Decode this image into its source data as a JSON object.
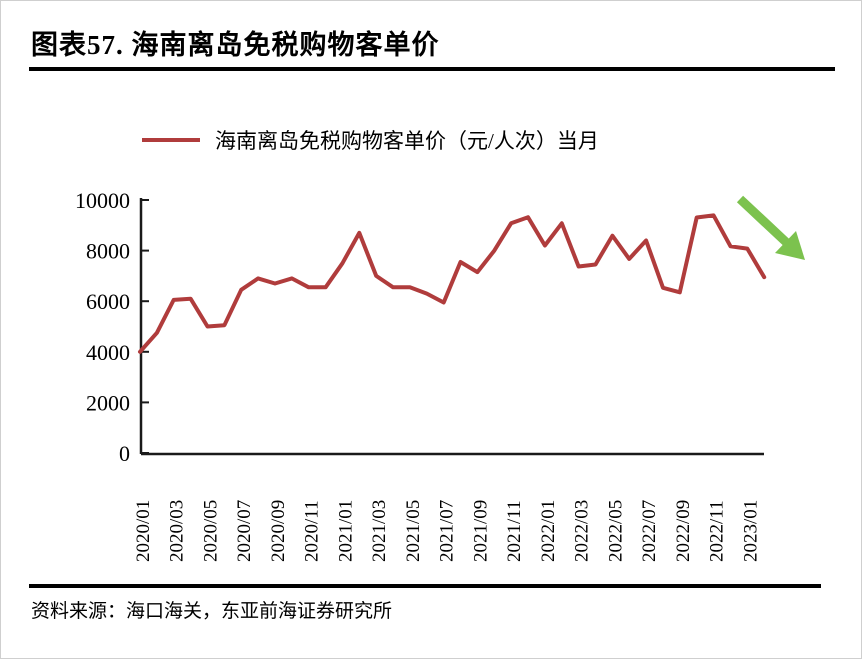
{
  "header": {
    "title": "图表57.  海南离岛免税购物客单价"
  },
  "legend": {
    "label": "海南离岛免税购物客单价（元/人次）当月"
  },
  "source": {
    "text": "资料来源：海口海关，东亚前海证券研究所"
  },
  "colors": {
    "line": "#B03C3C",
    "arrow": "#7CC24E",
    "axis": "#1a1a1a",
    "text": "#000000"
  },
  "chart_data": {
    "type": "line",
    "title": "海南离岛免税购物客单价",
    "series": [
      {
        "name": "海南离岛免税购物客单价（元/人次）当月",
        "values": [
          4000,
          4750,
          6050,
          6100,
          5000,
          5050,
          6450,
          6900,
          6700,
          6900,
          6550,
          6550,
          7500,
          8700,
          7000,
          6550,
          6550,
          6300,
          5950,
          7550,
          7150,
          8000,
          9080,
          9320,
          8200,
          9080,
          7370,
          7450,
          8590,
          7670,
          8400,
          6530,
          6350,
          9310,
          9390,
          8170,
          8080,
          6950
        ]
      }
    ],
    "categories": [
      "2020/01",
      "2020/02",
      "2020/03",
      "2020/04",
      "2020/05",
      "2020/06",
      "2020/07",
      "2020/08",
      "2020/09",
      "2020/10",
      "2020/11",
      "2020/12",
      "2021/01",
      "2021/02",
      "2021/03",
      "2021/04",
      "2021/05",
      "2021/06",
      "2021/07",
      "2021/08",
      "2021/09",
      "2021/10",
      "2021/11",
      "2021/12",
      "2022/01",
      "2022/02",
      "2022/03",
      "2022/04",
      "2022/05",
      "2022/06",
      "2022/07",
      "2022/08",
      "2022/09",
      "2022/10",
      "2022/11",
      "2022/12",
      "2023/01",
      "2023/02"
    ],
    "x_tick_every": 2,
    "y_ticks": [
      0,
      2000,
      4000,
      6000,
      8000,
      10000
    ],
    "ylim": [
      0,
      10000
    ],
    "xlabel": "",
    "ylabel": "",
    "grid": false,
    "legend_position": "top",
    "annotations": [
      {
        "type": "arrow-down-right",
        "meaning": "declining-trend",
        "color": "#7CC24E"
      }
    ]
  }
}
